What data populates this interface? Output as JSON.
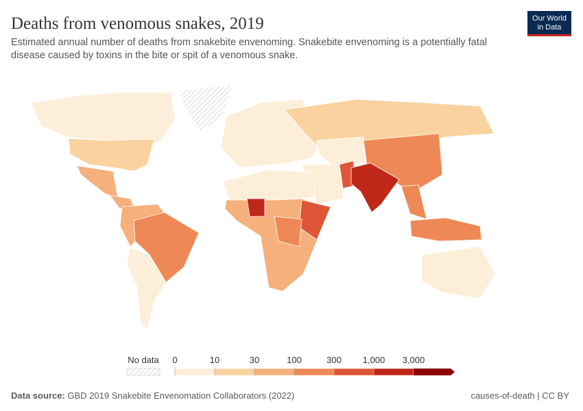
{
  "header": {
    "title": "Deaths from venomous snakes, 2019",
    "subtitle_line1": "Estimated annual number of deaths from snakebite envenoming. Snakebite envenoming is a potentially fatal",
    "subtitle_line2": "disease caused by toxins in the bite or spit of a venomous snake.",
    "logo_line1": "Our World",
    "logo_line2": "in Data"
  },
  "legend": {
    "no_data": "No data",
    "ticks": [
      0,
      10,
      30,
      100,
      300,
      {
        "value": 1000,
        "label": "1,000"
      },
      {
        "value": 3000,
        "label": "3,000"
      }
    ],
    "colors": [
      "#fdeed9",
      "#f9d29f",
      "#f5b07c",
      "#ee8957",
      "#dd5637",
      "#c0281a",
      "#8a0000"
    ]
  },
  "footer": {
    "source_label": "Data source:",
    "source": "GBD 2019 Snakebite Envenomation Collaborators (2022)",
    "right": "causes-of-death | CC BY"
  }
}
